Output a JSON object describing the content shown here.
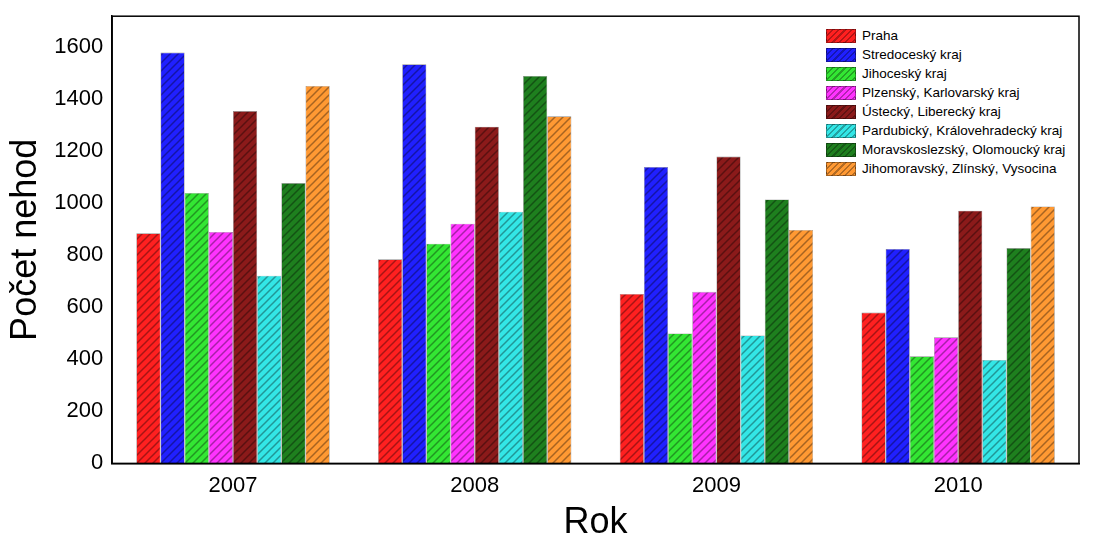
{
  "chart_data": {
    "type": "bar",
    "x_label": "Rok",
    "y_label": "Počet nehod",
    "categories": [
      "2007",
      "2008",
      "2009",
      "2010"
    ],
    "series": [
      {
        "name": "Praha",
        "color": "#ff2020",
        "values": [
          885,
          785,
          652,
          580
        ]
      },
      {
        "name": "Stredoceský kraj",
        "color": "#2020ff",
        "values": [
          1580,
          1535,
          1140,
          825
        ]
      },
      {
        "name": "Jihoceský kraj",
        "color": "#33e633",
        "values": [
          1040,
          845,
          500,
          412
        ]
      },
      {
        "name": "Plzenský, Karlovarský kraj",
        "color": "#ff33ff",
        "values": [
          890,
          922,
          660,
          485
        ]
      },
      {
        "name": "Ústecký, Liberecký kraj",
        "color": "#8b1a1a",
        "values": [
          1355,
          1295,
          1180,
          972
        ]
      },
      {
        "name": "Pardubický, Královehradecký kraj",
        "color": "#33e6e6",
        "values": [
          722,
          968,
          492,
          398
        ]
      },
      {
        "name": "Moravskoslezský, Olomoucký kraj",
        "color": "#1e7f1e",
        "values": [
          1078,
          1490,
          1015,
          828
        ]
      },
      {
        "name": "Jihomoravský, Zlínský, Vysocina",
        "color": "#ff9933",
        "values": [
          1452,
          1335,
          898,
          988
        ]
      }
    ],
    "ylim": [
      0,
      1720
    ],
    "yticks": [
      0,
      200,
      400,
      600,
      800,
      1000,
      1200,
      1400,
      1600
    ],
    "grid": false,
    "legend": "top-right"
  }
}
